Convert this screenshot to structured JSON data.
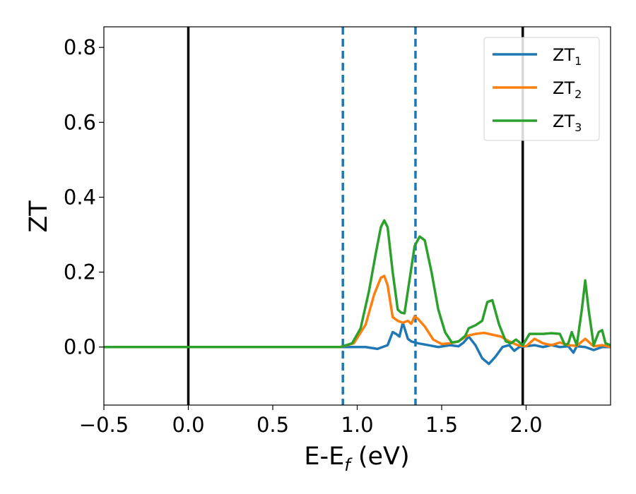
{
  "chart_data": {
    "type": "line",
    "xlabel": {
      "main": "E-E",
      "sub": "f",
      "unit": " (eV)"
    },
    "ylabel": "ZT",
    "xlim": [
      -0.5,
      2.5
    ],
    "ylim": [
      -0.155,
      0.855
    ],
    "xticks": [
      -0.5,
      0.0,
      0.5,
      1.0,
      1.5,
      2.0
    ],
    "xtick_labels": [
      "−0.5",
      "0.0",
      "0.5",
      "1.0",
      "1.5",
      "2.0"
    ],
    "yticks": [
      0.0,
      0.2,
      0.4,
      0.6,
      0.8
    ],
    "ytick_labels": [
      "0.0",
      "0.2",
      "0.4",
      "0.6",
      "0.8"
    ],
    "grid": false,
    "legend_position": "top-right",
    "vertical_lines": [
      {
        "x": 0.0,
        "style": "solid",
        "color": "#000000"
      },
      {
        "x": 1.98,
        "style": "solid",
        "color": "#000000"
      },
      {
        "x": 0.915,
        "style": "dashed",
        "color": "#1f77b4"
      },
      {
        "x": 1.345,
        "style": "dashed",
        "color": "#1f77b4"
      }
    ],
    "series": [
      {
        "name": "ZT",
        "name_sub": "1",
        "color": "#1f77b4",
        "x": [
          -0.5,
          0.9,
          1.05,
          1.12,
          1.18,
          1.21,
          1.23,
          1.25,
          1.27,
          1.3,
          1.32,
          1.36,
          1.42,
          1.48,
          1.55,
          1.6,
          1.63,
          1.66,
          1.7,
          1.74,
          1.78,
          1.82,
          1.86,
          1.9,
          1.93,
          1.96,
          2.0,
          2.05,
          2.1,
          2.15,
          2.2,
          2.25,
          2.28,
          2.3,
          2.35,
          2.4,
          2.45,
          2.5
        ],
        "y": [
          0.0,
          0.0,
          0.0,
          -0.005,
          0.005,
          0.04,
          0.035,
          0.028,
          0.065,
          0.022,
          0.015,
          0.01,
          0.005,
          0.0,
          0.005,
          0.002,
          0.012,
          0.028,
          0.005,
          -0.03,
          -0.045,
          -0.025,
          0.0,
          0.005,
          -0.01,
          0.0,
          0.002,
          0.005,
          0.0,
          0.005,
          0.0,
          0.002,
          -0.015,
          0.002,
          0.0,
          -0.008,
          0.0,
          0.0
        ]
      },
      {
        "name": "ZT",
        "name_sub": "2",
        "color": "#ff7f0e",
        "x": [
          -0.5,
          0.9,
          0.98,
          1.05,
          1.1,
          1.14,
          1.16,
          1.18,
          1.21,
          1.24,
          1.27,
          1.3,
          1.32,
          1.34,
          1.36,
          1.4,
          1.45,
          1.5,
          1.55,
          1.6,
          1.65,
          1.7,
          1.75,
          1.8,
          1.85,
          1.9,
          1.95,
          2.0,
          2.05,
          2.1,
          2.15,
          2.2,
          2.25,
          2.3,
          2.35,
          2.4,
          2.45,
          2.5
        ],
        "y": [
          0.0,
          0.0,
          0.01,
          0.06,
          0.14,
          0.185,
          0.19,
          0.165,
          0.08,
          0.07,
          0.065,
          0.07,
          0.062,
          0.082,
          0.075,
          0.055,
          0.02,
          0.008,
          0.01,
          0.015,
          0.03,
          0.035,
          0.038,
          0.033,
          0.028,
          0.015,
          0.005,
          0.002,
          0.022,
          0.01,
          0.005,
          0.012,
          0.005,
          0.003,
          0.022,
          0.002,
          0.005,
          0.0
        ]
      },
      {
        "name": "ZT",
        "name_sub": "3",
        "color": "#2ca02c",
        "x": [
          -0.5,
          0.9,
          0.97,
          1.02,
          1.07,
          1.11,
          1.14,
          1.16,
          1.18,
          1.21,
          1.24,
          1.26,
          1.28,
          1.31,
          1.34,
          1.37,
          1.4,
          1.44,
          1.48,
          1.52,
          1.56,
          1.6,
          1.64,
          1.66,
          1.7,
          1.74,
          1.77,
          1.8,
          1.84,
          1.88,
          1.91,
          1.94,
          1.98,
          2.02,
          2.06,
          2.1,
          2.15,
          2.2,
          2.23,
          2.25,
          2.27,
          2.3,
          2.33,
          2.35,
          2.37,
          2.4,
          2.43,
          2.45,
          2.47,
          2.5
        ],
        "y": [
          0.0,
          0.0,
          0.01,
          0.05,
          0.15,
          0.25,
          0.32,
          0.338,
          0.32,
          0.2,
          0.1,
          0.092,
          0.09,
          0.18,
          0.27,
          0.295,
          0.285,
          0.2,
          0.1,
          0.04,
          0.012,
          0.015,
          0.03,
          0.05,
          0.058,
          0.07,
          0.12,
          0.125,
          0.06,
          0.015,
          0.01,
          0.02,
          0.005,
          0.035,
          0.035,
          0.035,
          0.037,
          0.035,
          0.005,
          0.01,
          0.04,
          0.005,
          0.1,
          0.178,
          0.1,
          0.005,
          0.04,
          0.045,
          0.01,
          0.005
        ]
      }
    ]
  }
}
